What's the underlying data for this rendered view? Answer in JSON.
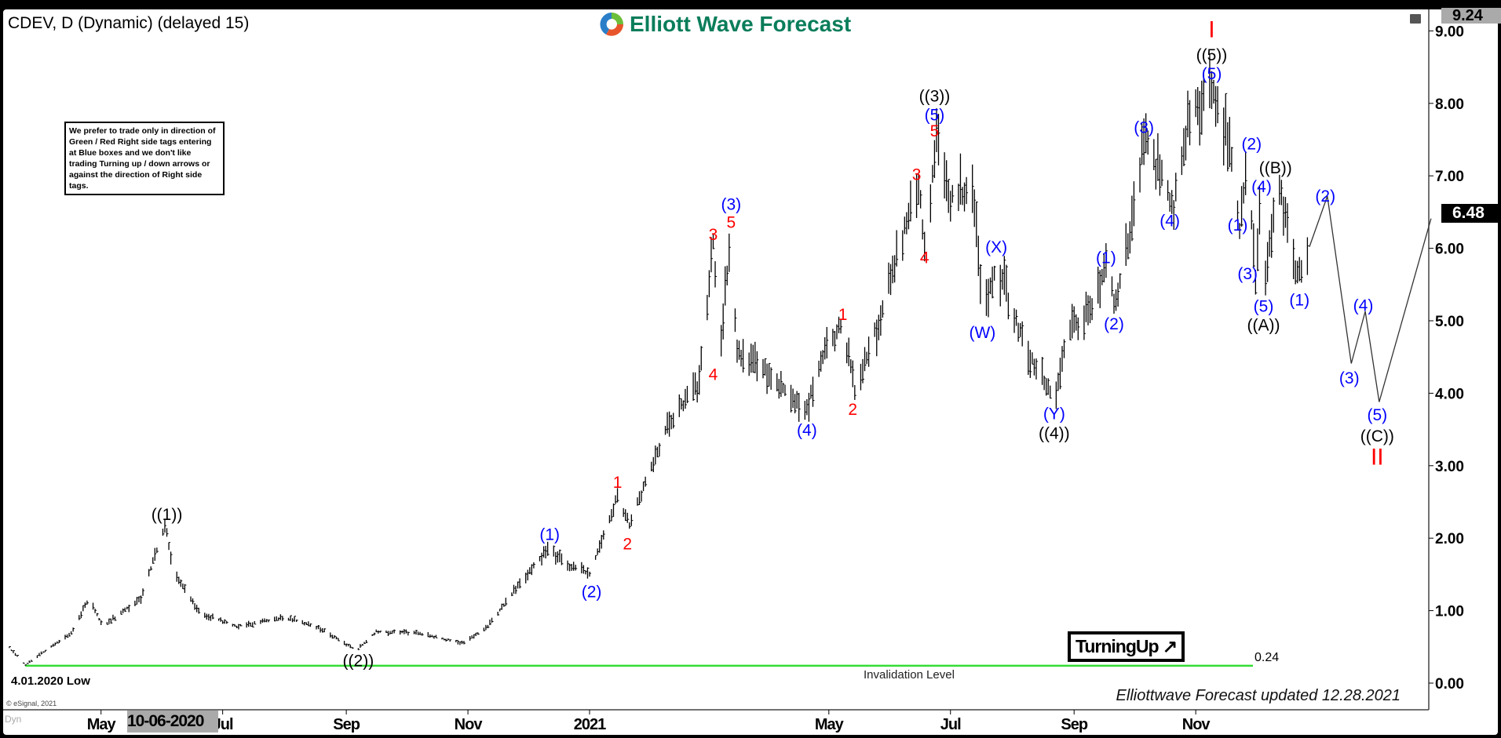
{
  "header": {
    "title": "CDEV, D (Dynamic) (delayed 15)",
    "brand": "Elliott Wave Forecast"
  },
  "note": "We prefer to trade only in direction of Green / Red Right side tags entering at Blue boxes and we don't like trading Turning up / down arrows or against the direction of Right side tags.",
  "turning_label": "TurningUp ↗",
  "updated": "Elliottwave Forecast updated 12.28.2021",
  "low_label": "4.01.2020 Low",
  "invalidation": {
    "label": "Invalidation Level",
    "value": "0.24",
    "price": 0.24,
    "color": "#33dd33"
  },
  "copyright": "© eSignal, 2021",
  "dyn_label": "Dyn",
  "cursor_date": "10-06-2020",
  "last_price": "6.48",
  "high_price": "9.24",
  "colors": {
    "black": "#000000",
    "blue": "#0000ff",
    "red": "#ff0000"
  },
  "chart_data": {
    "type": "ohlc-bar",
    "ylim": [
      -0.3,
      9.24
    ],
    "yticks": [
      "0.00",
      "1.00",
      "2.00",
      "3.00",
      "4.00",
      "5.00",
      "6.00",
      "7.00",
      "8.00",
      "9.00"
    ],
    "xticks": [
      {
        "label": "May",
        "date": "2020-05-01"
      },
      {
        "label": "Jul",
        "date": "2020-07-01"
      },
      {
        "label": "Sep",
        "date": "2020-09-01"
      },
      {
        "label": "Nov",
        "date": "2020-11-01"
      },
      {
        "label": "2021",
        "date": "2021-01-01"
      },
      {
        "label": "May",
        "date": "2021-05-01"
      },
      {
        "label": "Jul",
        "date": "2021-07-01"
      },
      {
        "label": "Sep",
        "date": "2021-09-01"
      },
      {
        "label": "Nov",
        "date": "2021-11-01"
      }
    ],
    "price_path": [
      [
        "2020-03-14",
        0.55
      ],
      [
        "2020-03-24",
        0.25
      ],
      [
        "2020-04-16",
        0.7
      ],
      [
        "2020-04-25",
        1.17
      ],
      [
        "2020-05-02",
        0.78
      ],
      [
        "2020-05-21",
        1.17
      ],
      [
        "2020-06-02",
        2.19
      ],
      [
        "2020-06-07",
        1.5
      ],
      [
        "2020-06-19",
        0.98
      ],
      [
        "2020-07-08",
        0.78
      ],
      [
        "2020-08-01",
        0.91
      ],
      [
        "2020-08-20",
        0.74
      ],
      [
        "2020-09-06",
        0.45
      ],
      [
        "2020-09-16",
        0.71
      ],
      [
        "2020-10-08",
        0.69
      ],
      [
        "2020-10-29",
        0.55
      ],
      [
        "2020-11-11",
        0.78
      ],
      [
        "2020-11-25",
        1.3
      ],
      [
        "2020-12-11",
        1.87
      ],
      [
        "2020-12-19",
        1.66
      ],
      [
        "2021-01-01",
        1.5
      ],
      [
        "2021-01-15",
        2.59
      ],
      [
        "2021-01-21",
        2.19
      ],
      [
        "2021-02-10",
        3.61
      ],
      [
        "2021-02-25",
        4.14
      ],
      [
        "2021-03-04",
        6.1
      ],
      [
        "2021-03-07",
        4.5
      ],
      [
        "2021-03-13",
        6.23
      ],
      [
        "2021-03-16",
        4.54
      ],
      [
        "2021-03-30",
        4.34
      ],
      [
        "2021-04-19",
        3.75
      ],
      [
        "2021-04-28",
        4.54
      ],
      [
        "2021-05-08",
        4.96
      ],
      [
        "2021-05-14",
        4.0
      ],
      [
        "2021-05-27",
        5.07
      ],
      [
        "2021-06-01",
        5.6
      ],
      [
        "2021-06-15",
        6.9
      ],
      [
        "2021-06-18",
        6.05
      ],
      [
        "2021-06-24",
        7.47
      ],
      [
        "2021-06-30",
        6.65
      ],
      [
        "2021-07-12",
        6.85
      ],
      [
        "2021-07-18",
        5.07
      ],
      [
        "2021-07-24",
        5.79
      ],
      [
        "2021-08-07",
        4.67
      ],
      [
        "2021-08-22",
        3.88
      ],
      [
        "2021-08-29",
        4.87
      ],
      [
        "2021-09-10",
        5.13
      ],
      [
        "2021-09-17",
        5.73
      ],
      [
        "2021-09-22",
        5.2
      ],
      [
        "2021-10-02",
        6.65
      ],
      [
        "2021-10-06",
        7.5
      ],
      [
        "2021-10-21",
        6.58
      ],
      [
        "2021-10-28",
        7.7
      ],
      [
        "2021-11-09",
        8.3
      ],
      [
        "2021-11-19",
        7.3
      ],
      [
        "2021-11-23",
        6.3
      ],
      [
        "2021-11-27",
        7.2
      ],
      [
        "2021-12-01",
        5.6
      ],
      [
        "2021-12-03",
        6.7
      ],
      [
        "2021-12-05",
        5.4
      ],
      [
        "2021-12-12",
        6.98
      ],
      [
        "2021-12-22",
        5.6
      ],
      [
        "2021-12-28",
        6.05
      ]
    ],
    "projection": [
      [
        "2021-12-28",
        6.02
      ],
      [
        "2022-01-06",
        6.72
      ],
      [
        "2022-01-18",
        4.41
      ],
      [
        "2022-01-25",
        5.13
      ],
      [
        "2022-02-01",
        3.88
      ],
      [
        "2022-02-27",
        6.41
      ]
    ],
    "wave_labels": [
      {
        "text": "((1))",
        "color": "black",
        "date": "2020-06-03",
        "price": 2.34
      },
      {
        "text": "((2))",
        "color": "black",
        "date": "2020-09-07",
        "price": 0.32
      },
      {
        "text": "(1)",
        "color": "blue",
        "date": "2020-12-12",
        "price": 2.06
      },
      {
        "text": "(2)",
        "color": "blue",
        "date": "2021-01-02",
        "price": 1.27
      },
      {
        "text": "1",
        "color": "red",
        "date": "2021-01-15",
        "price": 2.78
      },
      {
        "text": "2",
        "color": "red",
        "date": "2021-01-20",
        "price": 1.93
      },
      {
        "text": "3",
        "color": "red",
        "date": "2021-03-04",
        "price": 6.2
      },
      {
        "text": "4",
        "color": "red",
        "date": "2021-03-04",
        "price": 4.27
      },
      {
        "text": "(3)",
        "color": "blue",
        "date": "2021-03-13",
        "price": 6.62
      },
      {
        "text": "5",
        "color": "red",
        "date": "2021-03-13",
        "price": 6.37
      },
      {
        "text": "(4)",
        "color": "blue",
        "date": "2021-04-20",
        "price": 3.5
      },
      {
        "text": "1",
        "color": "red",
        "date": "2021-05-08",
        "price": 5.1
      },
      {
        "text": "2",
        "color": "red",
        "date": "2021-05-13",
        "price": 3.79
      },
      {
        "text": "3",
        "color": "red",
        "date": "2021-06-14",
        "price": 7.03
      },
      {
        "text": "4",
        "color": "red",
        "date": "2021-06-18",
        "price": 5.88
      },
      {
        "text": "((3))",
        "color": "black",
        "date": "2021-06-23",
        "price": 8.11
      },
      {
        "text": "(5)",
        "color": "blue",
        "date": "2021-06-23",
        "price": 7.85
      },
      {
        "text": "5",
        "color": "red",
        "date": "2021-06-23",
        "price": 7.63
      },
      {
        "text": "(W)",
        "color": "blue",
        "date": "2021-07-17",
        "price": 4.85
      },
      {
        "text": "(X)",
        "color": "blue",
        "date": "2021-07-24",
        "price": 6.03
      },
      {
        "text": "(Y)",
        "color": "blue",
        "date": "2021-08-22",
        "price": 3.73
      },
      {
        "text": "((4))",
        "color": "black",
        "date": "2021-08-22",
        "price": 3.46
      },
      {
        "text": "(1)",
        "color": "blue",
        "date": "2021-09-17",
        "price": 5.88
      },
      {
        "text": "(2)",
        "color": "blue",
        "date": "2021-09-21",
        "price": 4.97
      },
      {
        "text": "(3)",
        "color": "blue",
        "date": "2021-10-06",
        "price": 7.68
      },
      {
        "text": "(4)",
        "color": "blue",
        "date": "2021-10-19",
        "price": 6.39
      },
      {
        "text": "I",
        "color": "red",
        "date": "2021-11-09",
        "price": 9.0
      },
      {
        "text": "((5))",
        "color": "black",
        "date": "2021-11-09",
        "price": 8.68
      },
      {
        "text": "(5)",
        "color": "blue",
        "date": "2021-11-09",
        "price": 8.42
      },
      {
        "text": "(1)",
        "color": "blue",
        "date": "2021-11-22",
        "price": 6.33
      },
      {
        "text": "(3)",
        "color": "blue",
        "date": "2021-11-27",
        "price": 5.66
      },
      {
        "text": "(2)",
        "color": "blue",
        "date": "2021-11-29",
        "price": 7.45
      },
      {
        "text": "(4)",
        "color": "blue",
        "date": "2021-12-04",
        "price": 6.86
      },
      {
        "text": "(5)",
        "color": "blue",
        "date": "2021-12-05",
        "price": 5.21
      },
      {
        "text": "((A))",
        "color": "black",
        "date": "2021-12-05",
        "price": 4.95
      },
      {
        "text": "((B))",
        "color": "black",
        "date": "2021-12-11",
        "price": 7.12
      },
      {
        "text": "(1)",
        "color": "blue",
        "date": "2021-12-23",
        "price": 5.3
      },
      {
        "text": "(2)",
        "color": "blue",
        "date": "2022-01-05",
        "price": 6.73
      },
      {
        "text": "(3)",
        "color": "blue",
        "date": "2022-01-17",
        "price": 4.22
      },
      {
        "text": "(4)",
        "color": "blue",
        "date": "2022-01-24",
        "price": 5.22
      },
      {
        "text": "(5)",
        "color": "blue",
        "date": "2022-01-31",
        "price": 3.71
      },
      {
        "text": "((C))",
        "color": "black",
        "date": "2022-01-31",
        "price": 3.42
      },
      {
        "text": "II",
        "color": "red",
        "date": "2022-01-31",
        "price": 3.1
      }
    ]
  }
}
